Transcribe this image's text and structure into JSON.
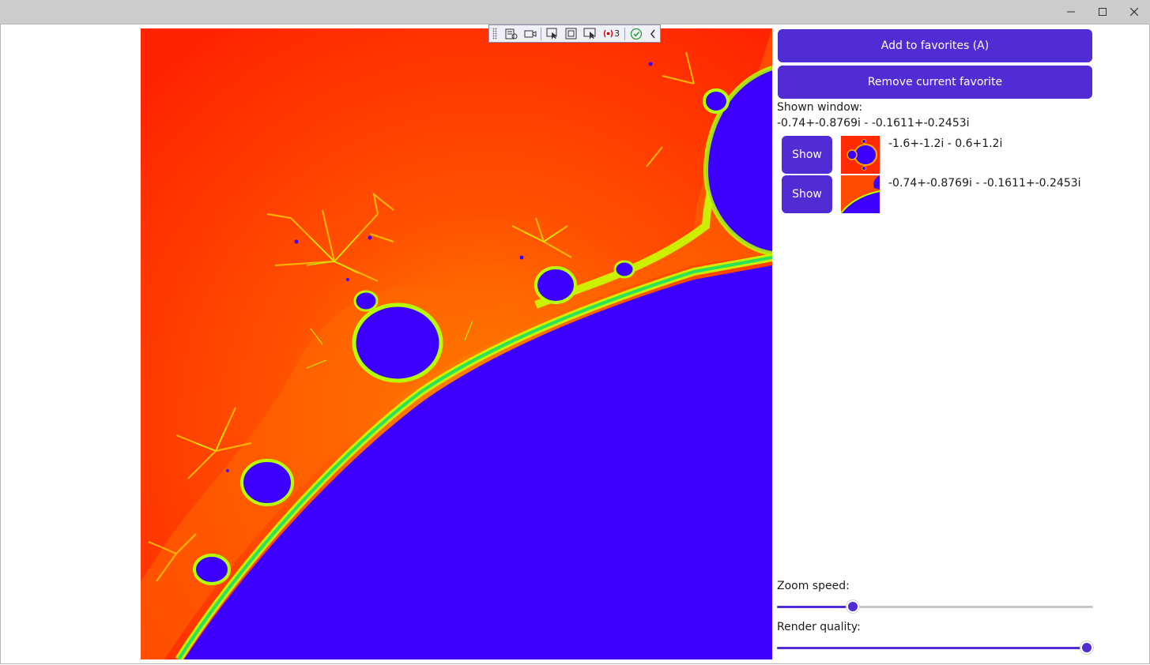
{
  "window": {
    "minimize_icon": "minimize-icon",
    "maximize_icon": "maximize-icon",
    "close_icon": "close-icon"
  },
  "colors": {
    "accent": "#512bd4",
    "set_color": "#3d00ff",
    "outer": "#ff2200",
    "mid": "#ff7a00",
    "edge": "#b6ff00"
  },
  "devtools": {
    "live_issue_count": "3"
  },
  "panel": {
    "add_favorite_label": "Add to favorites (A)",
    "remove_favorite_label": "Remove current favorite",
    "shown_window_label": "Shown window:",
    "shown_window_value": "-0.74+-0.8769i - -0.1611+-0.2453i",
    "favorites": [
      {
        "show_label": "Show",
        "range": "-1.6+-1.2i - 0.6+1.2i"
      },
      {
        "show_label": "Show",
        "range": "-0.74+-0.8769i - -0.1611+-0.2453i"
      }
    ],
    "zoom_speed_label": "Zoom speed:",
    "zoom_speed_value": 0.24,
    "render_quality_label": "Render quality:",
    "render_quality_value": 0.98
  }
}
